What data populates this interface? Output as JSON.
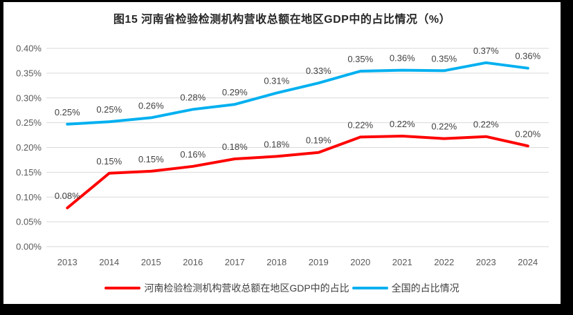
{
  "colors": {
    "frame_border": "#000000",
    "background": "#ffffff",
    "grid": "#d9d9d9",
    "axis_text": "#595959",
    "data_label_text": "#404040",
    "series_henan": "#ff0000",
    "series_national": "#00b0f0"
  },
  "chart_data": {
    "type": "line",
    "title": "图15  河南省检验检测机构营收总额在地区GDP中的占比情况（%）",
    "categories": [
      "2013",
      "2014",
      "2015",
      "2016",
      "2017",
      "2018",
      "2019",
      "2020",
      "2021",
      "2022",
      "2023",
      "2024"
    ],
    "xlabel": "",
    "ylabel": "",
    "y_unit": "%",
    "ylim": [
      0,
      0.4
    ],
    "y_ticks": [
      "0.00%",
      "0.05%",
      "0.10%",
      "0.15%",
      "0.20%",
      "0.25%",
      "0.30%",
      "0.35%",
      "0.40%"
    ],
    "grid": true,
    "legend_position": "bottom",
    "series": [
      {
        "name": "河南检验检测机构营收总额在地区GDP中的占比",
        "color": "#ff0000",
        "data_labels": [
          "0.08%",
          "0.15%",
          "0.15%",
          "0.16%",
          "0.18%",
          "0.18%",
          "0.19%",
          "0.22%",
          "0.22%",
          "0.22%",
          "0.22%",
          "0.20%"
        ],
        "values": [
          0.078,
          0.148,
          0.152,
          0.162,
          0.177,
          0.182,
          0.19,
          0.221,
          0.223,
          0.218,
          0.222,
          0.203
        ]
      },
      {
        "name": "全国的占比情况",
        "color": "#00b0f0",
        "data_labels": [
          "0.25%",
          "0.25%",
          "0.26%",
          "0.28%",
          "0.29%",
          "0.31%",
          "0.33%",
          "0.35%",
          "0.36%",
          "0.35%",
          "0.37%",
          "0.36%"
        ],
        "values": [
          0.247,
          0.252,
          0.26,
          0.277,
          0.287,
          0.31,
          0.33,
          0.354,
          0.356,
          0.355,
          0.371,
          0.36
        ]
      }
    ]
  }
}
